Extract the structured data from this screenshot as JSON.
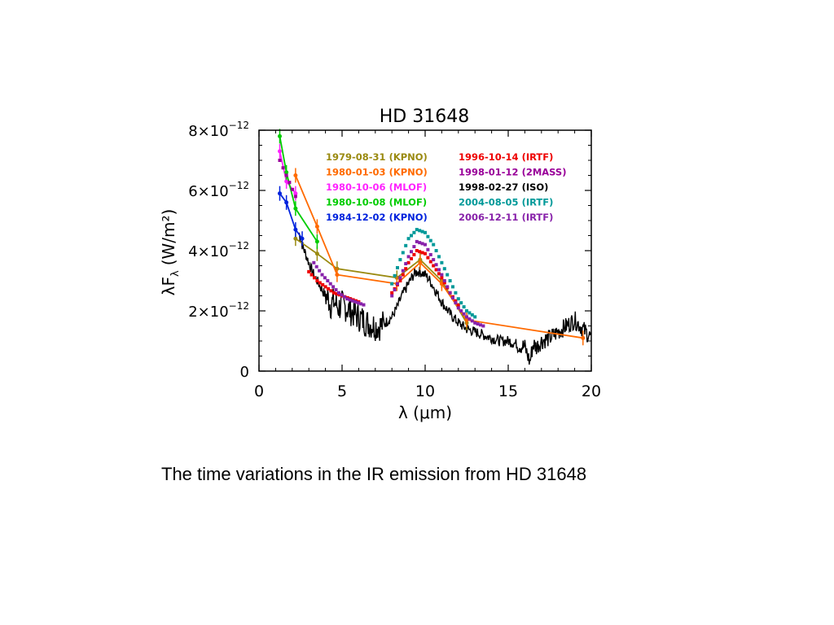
{
  "slide": {
    "caption": "The time variations in the IR emission from HD 31648"
  },
  "chart_data": {
    "type": "line",
    "title": "HD 31648",
    "xlabel": "λ (μm)",
    "ylabel_main": "λF",
    "ylabel_sub": "λ",
    "ylabel_units": "(W/m²)",
    "xlim": [
      0,
      20
    ],
    "ylim": [
      0,
      8e-12
    ],
    "x_ticks": [
      {
        "value": 0,
        "label": "0"
      },
      {
        "value": 5,
        "label": "5"
      },
      {
        "value": 10,
        "label": "10"
      },
      {
        "value": 15,
        "label": "15"
      },
      {
        "value": 20,
        "label": "20"
      }
    ],
    "y_ticks": [
      {
        "value": 0,
        "label": "0",
        "exp": ""
      },
      {
        "value": 2e-12,
        "label": "2×10",
        "exp": "−12"
      },
      {
        "value": 4e-12,
        "label": "4×10",
        "exp": "−12"
      },
      {
        "value": 6e-12,
        "label": "6×10",
        "exp": "−12"
      },
      {
        "value": 8e-12,
        "label": "8×10",
        "exp": "−12"
      }
    ],
    "grid": false,
    "legend_position": "top",
    "series": [
      {
        "name": "1979-08-31 (KPNO)",
        "color": "#9a8a10",
        "style": "line",
        "x": [
          2.2,
          3.5,
          4.7,
          8.3,
          9.7,
          11.0,
          12.5
        ],
        "y": [
          4.4e-12,
          3.9e-12,
          3.4e-12,
          3.1e-12,
          3.7e-12,
          3e-12,
          1.6e-12
        ]
      },
      {
        "name": "1980-01-03 (KPNO)",
        "color": "#ff6a00",
        "style": "line",
        "x": [
          2.2,
          3.5,
          4.7,
          8.3,
          9.7,
          11.0,
          12.5,
          19.5
        ],
        "y": [
          6.5e-12,
          4.8e-12,
          3.2e-12,
          2.9e-12,
          3.6e-12,
          2.9e-12,
          1.7e-12,
          1.1e-12
        ]
      },
      {
        "name": "1980-10-06 (MLOF)",
        "color": "#ff22ff",
        "style": "line",
        "x": [
          1.25,
          1.65,
          2.2
        ],
        "y": [
          7.3e-12,
          6.3e-12,
          5.9e-12
        ]
      },
      {
        "name": "1980-10-08 (MLOF)",
        "color": "#00cc00",
        "style": "line",
        "x": [
          1.25,
          1.65,
          2.2,
          3.5
        ],
        "y": [
          7.8e-12,
          6.6e-12,
          5.4e-12,
          4.3e-12
        ]
      },
      {
        "name": "1984-12-02 (KPNO)",
        "color": "#0022dd",
        "style": "line",
        "x": [
          1.25,
          1.65,
          2.2,
          2.6
        ],
        "y": [
          5.9e-12,
          5.6e-12,
          4.7e-12,
          4.4e-12
        ]
      },
      {
        "name": "1996-10-14 (IRTF)",
        "color": "#ee0000",
        "style": "dots",
        "x": [
          3.0,
          3.5,
          4.0,
          4.5,
          5.0,
          5.5,
          6.0,
          8.0,
          8.5,
          9.0,
          9.5,
          10.0,
          10.5,
          11.0,
          11.5,
          12.0
        ],
        "y": [
          3.3e-12,
          3e-12,
          2.8e-12,
          2.6e-12,
          2.5e-12,
          2.4e-12,
          2.3e-12,
          2.6e-12,
          3e-12,
          3.6e-12,
          4e-12,
          3.9e-12,
          3.5e-12,
          3.1e-12,
          2.6e-12,
          2.2e-12
        ]
      },
      {
        "name": "1998-01-12 (2MASS)",
        "color": "#990099",
        "style": "dots",
        "x": [
          1.25,
          1.65,
          2.2
        ],
        "y": [
          7e-12,
          6.5e-12,
          5.8e-12
        ]
      },
      {
        "name": "1998-02-27 (ISO)",
        "color": "#000000",
        "style": "noisy",
        "x": [
          2.4,
          2.6,
          2.8,
          3.0,
          3.2,
          3.5,
          3.8,
          4.0,
          4.2,
          4.3,
          4.5,
          4.8,
          5.0,
          5.5,
          6.0,
          6.5,
          7.0,
          7.3,
          7.6,
          8.0,
          8.3,
          8.6,
          9.0,
          9.3,
          9.5,
          9.7,
          10.0,
          10.3,
          10.6,
          11.0,
          11.5,
          12.0,
          12.5,
          13.0,
          13.5,
          14.0,
          14.5,
          15.0,
          15.5,
          16.0,
          16.3,
          16.5,
          16.7,
          17.0,
          17.5,
          18.0,
          18.5,
          19.0,
          19.5,
          20.0
        ],
        "y": [
          4.6e-12,
          4.2e-12,
          3.9e-12,
          3.6e-12,
          3.3e-12,
          3e-12,
          2.7e-12,
          2.5e-12,
          2.4e-12,
          2.2e-12,
          2.3e-12,
          2.1e-12,
          2.2e-12,
          2e-12,
          1.8e-12,
          1.6e-12,
          1.5e-12,
          1.5e-12,
          1.6e-12,
          1.8e-12,
          2.1e-12,
          2.5e-12,
          2.9e-12,
          3.2e-12,
          3.3e-12,
          3.3e-12,
          3.2e-12,
          3e-12,
          2.7e-12,
          2.3e-12,
          1.9e-12,
          1.6e-12,
          1.4e-12,
          1.3e-12,
          1.2e-12,
          1.1e-12,
          1e-12,
          1e-12,
          9e-13,
          8e-13,
          3e-13,
          9e-13,
          8e-13,
          1e-12,
          1.1e-12,
          1.3e-12,
          1.5e-12,
          1.7e-12,
          1.4e-12,
          1.1e-12
        ]
      },
      {
        "name": "2004-08-05 (IRTF)",
        "color": "#009999",
        "style": "dots",
        "x": [
          8.0,
          8.5,
          9.0,
          9.5,
          10.0,
          10.5,
          11.0,
          11.5,
          12.0,
          12.5,
          13.0
        ],
        "y": [
          2.9e-12,
          3.7e-12,
          4.4e-12,
          4.7e-12,
          4.6e-12,
          4.2e-12,
          3.6e-12,
          3e-12,
          2.4e-12,
          2e-12,
          1.8e-12
        ]
      },
      {
        "name": "2006-12-11 (IRTF)",
        "color": "#8822aa",
        "style": "dots",
        "x": [
          3.3,
          3.8,
          4.3,
          4.8,
          5.3,
          5.8,
          6.3,
          8.0,
          8.5,
          9.0,
          9.5,
          10.0,
          10.5,
          11.0,
          11.5,
          12.0,
          12.5,
          13.0,
          13.5
        ],
        "y": [
          3.6e-12,
          3.2e-12,
          2.9e-12,
          2.6e-12,
          2.4e-12,
          2.3e-12,
          2.2e-12,
          2.5e-12,
          3.1e-12,
          3.8e-12,
          4.3e-12,
          4.2e-12,
          3.7e-12,
          3.2e-12,
          2.6e-12,
          2.1e-12,
          1.8e-12,
          1.6e-12,
          1.5e-12
        ]
      }
    ]
  }
}
